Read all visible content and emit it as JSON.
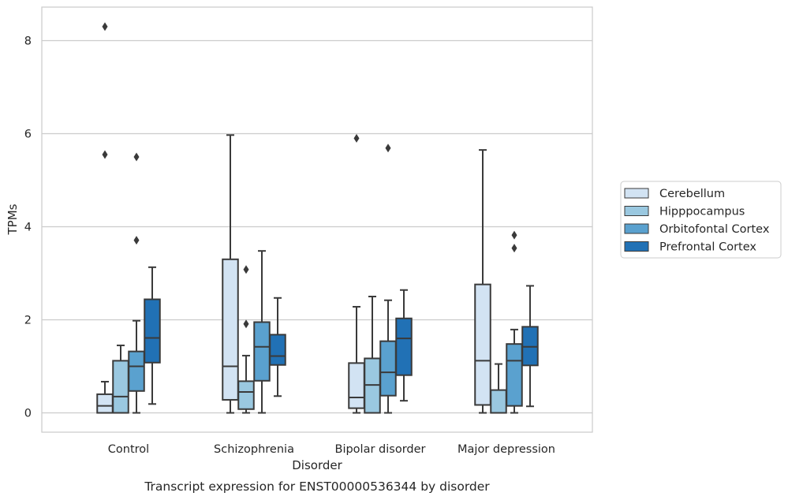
{
  "chart_data": {
    "type": "boxplot",
    "caption": "Transcript expression for ENST00000536344 by disorder",
    "xlabel": "Disorder",
    "ylabel": "TPMs",
    "ylim": [
      -0.4,
      8.7
    ],
    "yticks": [
      0,
      2,
      4,
      6,
      8
    ],
    "grid": "horizontal",
    "legend_position": "right",
    "categories": [
      "Control",
      "Schizophrenia",
      "Bipolar disorder",
      "Major depression"
    ],
    "series": [
      {
        "name": "Cerebellum",
        "color": "#d2e3f3",
        "boxes": [
          {
            "min": 0.0,
            "q1": 0.0,
            "median": 0.15,
            "q3": 0.4,
            "max": 0.67,
            "outliers": [
              5.55,
              8.3
            ]
          },
          {
            "min": 0.0,
            "q1": 0.28,
            "median": 1.0,
            "q3": 3.3,
            "max": 5.97,
            "outliers": []
          },
          {
            "min": 0.0,
            "q1": 0.1,
            "median": 0.33,
            "q3": 1.07,
            "max": 2.28,
            "outliers": [
              5.9
            ]
          },
          {
            "min": 0.0,
            "q1": 0.17,
            "median": 1.12,
            "q3": 2.76,
            "max": 5.65,
            "outliers": []
          }
        ]
      },
      {
        "name": "Hipppocampus",
        "color": "#9ac8e0",
        "boxes": [
          {
            "min": 0.0,
            "q1": 0.0,
            "median": 0.35,
            "q3": 1.12,
            "max": 1.45,
            "outliers": []
          },
          {
            "min": 0.0,
            "q1": 0.08,
            "median": 0.45,
            "q3": 0.68,
            "max": 1.23,
            "outliers": [
              1.91,
              3.08
            ]
          },
          {
            "min": 0.0,
            "q1": 0.0,
            "median": 0.6,
            "q3": 1.17,
            "max": 2.5,
            "outliers": []
          },
          {
            "min": 0.0,
            "q1": 0.0,
            "median": 0.0,
            "q3": 0.49,
            "max": 1.05,
            "outliers": []
          }
        ]
      },
      {
        "name": "Orbitofontal Cortex",
        "color": "#5aa1cf",
        "boxes": [
          {
            "min": 0.0,
            "q1": 0.47,
            "median": 1.0,
            "q3": 1.32,
            "max": 1.98,
            "outliers": [
              3.71,
              5.5
            ]
          },
          {
            "min": 0.0,
            "q1": 0.69,
            "median": 1.42,
            "q3": 1.95,
            "max": 3.48,
            "outliers": []
          },
          {
            "min": 0.0,
            "q1": 0.37,
            "median": 0.87,
            "q3": 1.54,
            "max": 2.42,
            "outliers": [
              5.69
            ]
          },
          {
            "min": 0.0,
            "q1": 0.15,
            "median": 1.12,
            "q3": 1.48,
            "max": 1.79,
            "outliers": [
              3.54,
              3.82
            ]
          }
        ]
      },
      {
        "name": "Prefrontal Cortex",
        "color": "#2171b5",
        "boxes": [
          {
            "min": 0.19,
            "q1": 1.08,
            "median": 1.61,
            "q3": 2.44,
            "max": 3.13,
            "outliers": []
          },
          {
            "min": 0.36,
            "q1": 1.03,
            "median": 1.22,
            "q3": 1.68,
            "max": 2.47,
            "outliers": []
          },
          {
            "min": 0.26,
            "q1": 0.81,
            "median": 1.6,
            "q3": 2.03,
            "max": 2.64,
            "outliers": []
          },
          {
            "min": 0.14,
            "q1": 1.02,
            "median": 1.42,
            "q3": 1.85,
            "max": 2.73,
            "outliers": []
          }
        ]
      }
    ]
  }
}
